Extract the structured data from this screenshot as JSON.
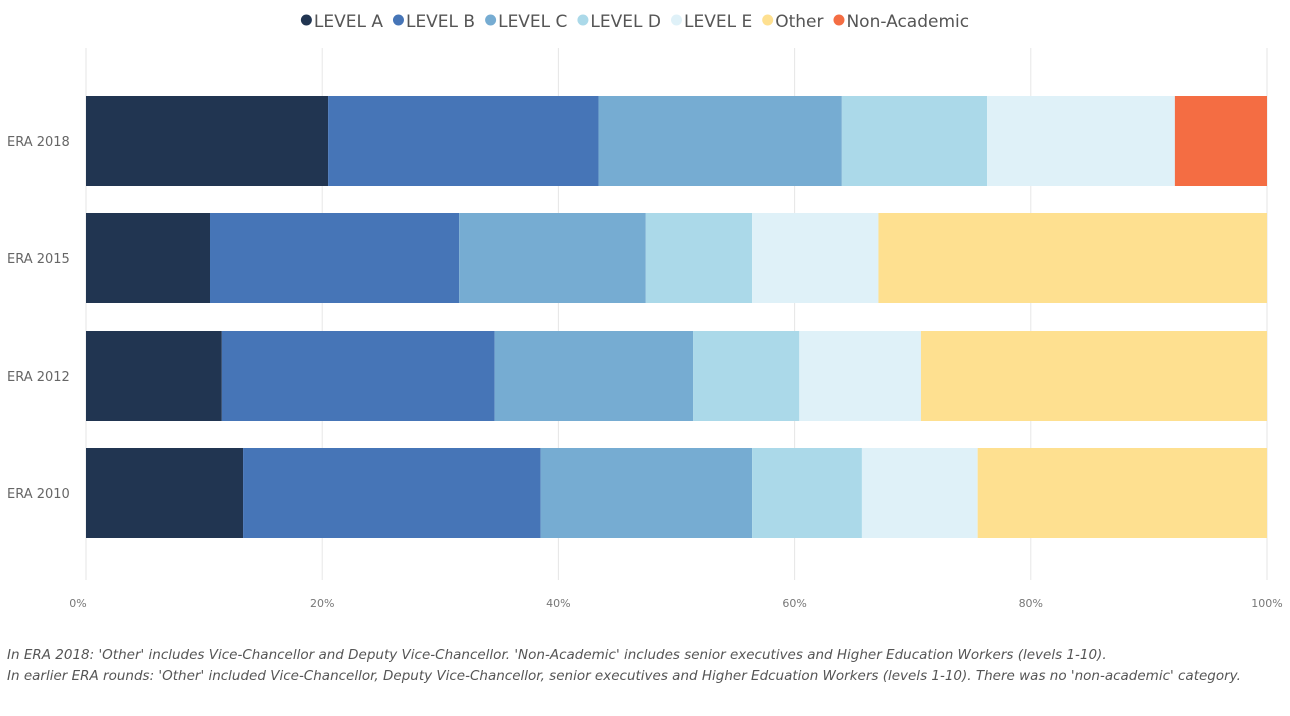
{
  "chart_data": {
    "type": "bar",
    "orientation": "horizontal",
    "stacked": true,
    "percent": true,
    "categories": [
      "ERA 2018",
      "ERA 2015",
      "ERA 2012",
      "ERA 2010"
    ],
    "series": [
      {
        "name": "LEVEL A",
        "color": "#213551",
        "values": [
          20.5,
          10.5,
          11.5,
          13.3
        ]
      },
      {
        "name": "LEVEL B",
        "color": "#4675b7",
        "values": [
          22.9,
          21.1,
          23.1,
          25.2
        ]
      },
      {
        "name": "LEVEL C",
        "color": "#76acd2",
        "values": [
          20.6,
          15.8,
          16.8,
          17.9
        ]
      },
      {
        "name": "LEVEL D",
        "color": "#abd9e9",
        "values": [
          12.3,
          9.0,
          9.0,
          9.3
        ]
      },
      {
        "name": "LEVEL E",
        "color": "#dff1f8",
        "values": [
          15.9,
          10.7,
          10.3,
          9.8
        ]
      },
      {
        "name": "Other",
        "color": "#fee090",
        "values": [
          0,
          32.9,
          29.3,
          24.5
        ]
      },
      {
        "name": "Non-Academic",
        "color": "#f46d43",
        "values": [
          7.8,
          0,
          0,
          0
        ]
      }
    ],
    "xlim": [
      0,
      100
    ],
    "x_ticks": [
      "0%",
      "20%",
      "40%",
      "60%",
      "80%",
      "100%"
    ],
    "grid": true,
    "legend_position": "top-center"
  },
  "notes": [
    "In ERA 2018: 'Other' includes Vice-Chancellor and Deputy Vice-Chancellor. 'Non-Academic' includes senior executives and Higher Education Workers (levels 1-10).",
    "In earlier ERA rounds: 'Other' included Vice-Chancellor, Deputy Vice-Chancellor, senior executives and Higher Edcuation Workers (levels 1-10). There was no 'non-academic' category."
  ]
}
